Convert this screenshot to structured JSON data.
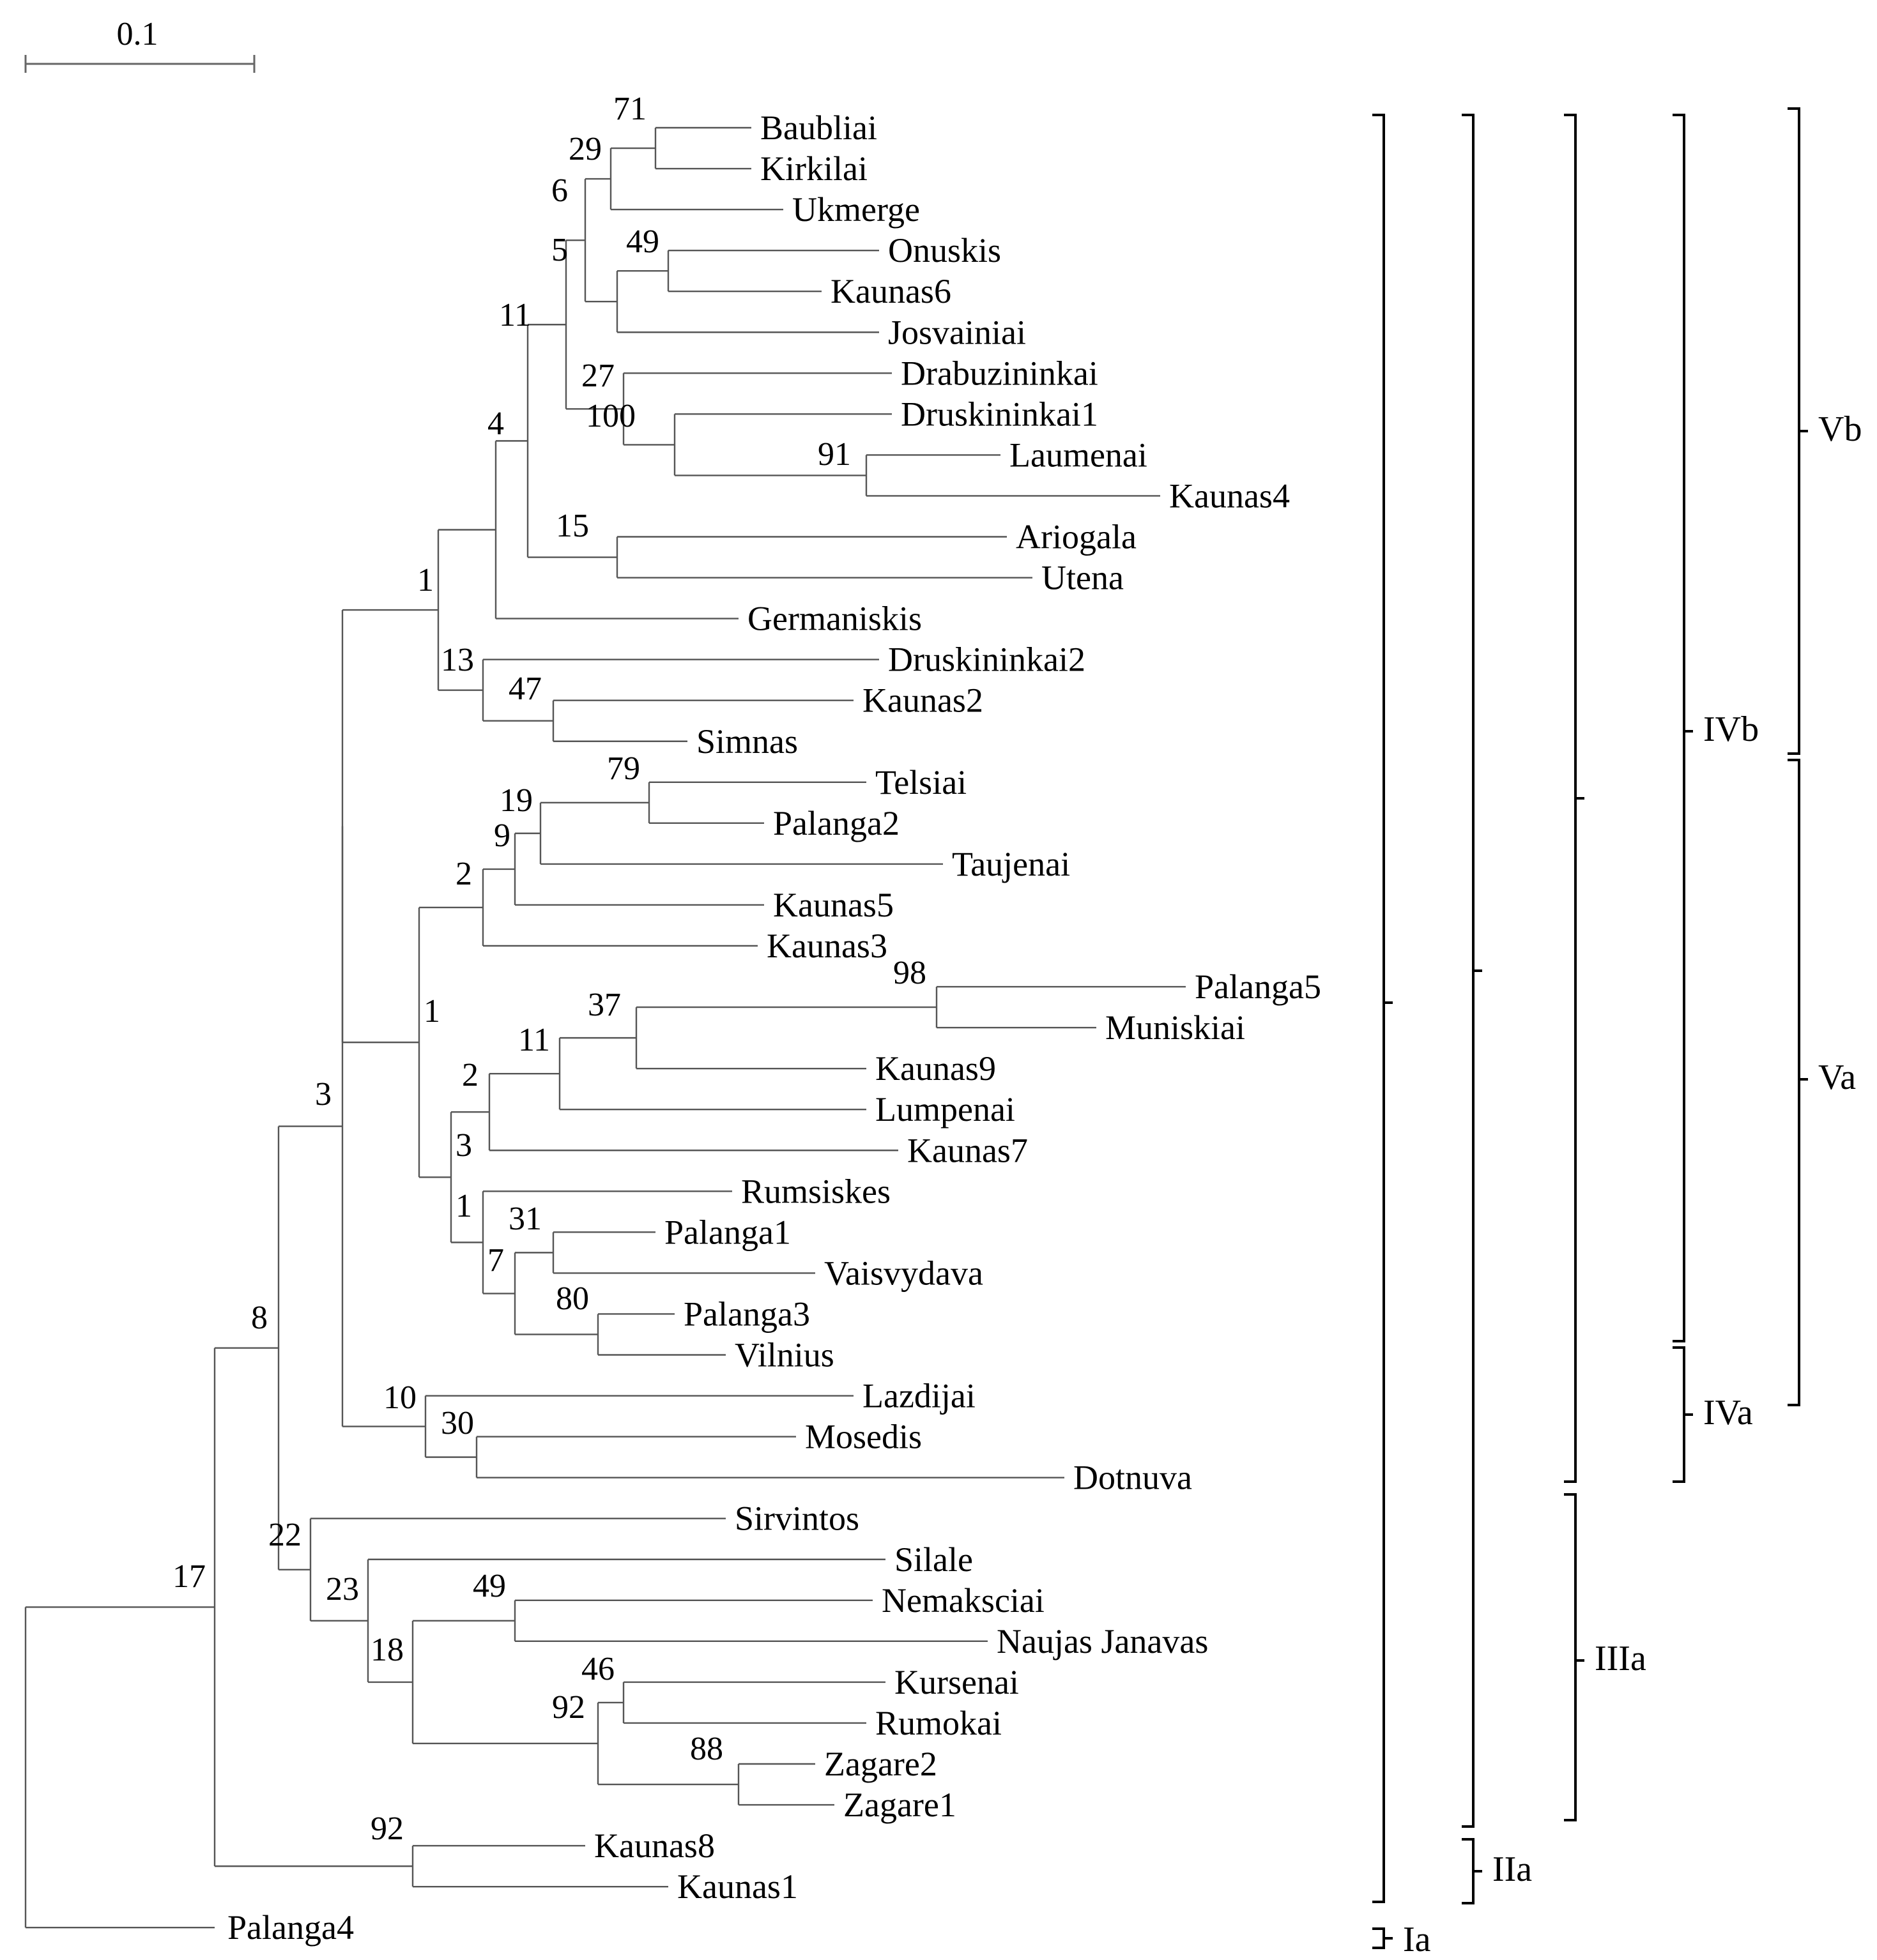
{
  "scale_bar": {
    "label": "0.1"
  },
  "tree": {
    "leaves": [
      "Baubliai",
      "Kirkilai",
      "Ukmerge",
      "Onuskis",
      "Kaunas6",
      "Josvainiai",
      "Drabuzininkai",
      "Druskininkai1",
      "Laumenai",
      "Kaunas4",
      "Ariogala",
      "Utena",
      "Germaniskis",
      "Druskininkai2",
      "Kaunas2",
      "Simnas",
      "Telsiai",
      "Palanga2",
      "Taujenai",
      "Kaunas5",
      "Kaunas3",
      "Palanga5",
      "Muniskiai",
      "Kaunas9",
      "Lumpenai",
      "Kaunas7",
      "Rumsiskes",
      "Palanga1",
      "Vaisvydava",
      "Palanga3",
      "Vilnius",
      "Lazdijai",
      "Mosedis",
      "Dotnuva",
      "Sirvintos",
      "Silale",
      "Nemaksciai",
      "Naujas Janavas",
      "Kursenai",
      "Rumokai",
      "Zagare2",
      "Zagare1",
      "Kaunas8",
      "Kaunas1",
      "Palanga4"
    ],
    "bootstrap_values": [
      "71",
      "29",
      "6",
      "49",
      "5",
      "27",
      "100",
      "91",
      "11",
      "15",
      "4",
      "1",
      "13",
      "47",
      "79",
      "19",
      "9",
      "2",
      "98",
      "37",
      "11",
      "2",
      "3",
      "31",
      "80",
      "7",
      "1",
      "1",
      "10",
      "30",
      "3",
      "49",
      "46",
      "88",
      "92",
      "18",
      "23",
      "22",
      "8",
      "92",
      "17"
    ]
  },
  "clades": {
    "Ia": "Ia",
    "IIa": "IIa",
    "IIIa": "IIIa",
    "IVa": "IVa",
    "IVb": "IVb",
    "Va": "Va",
    "Vb": "Vb"
  }
}
